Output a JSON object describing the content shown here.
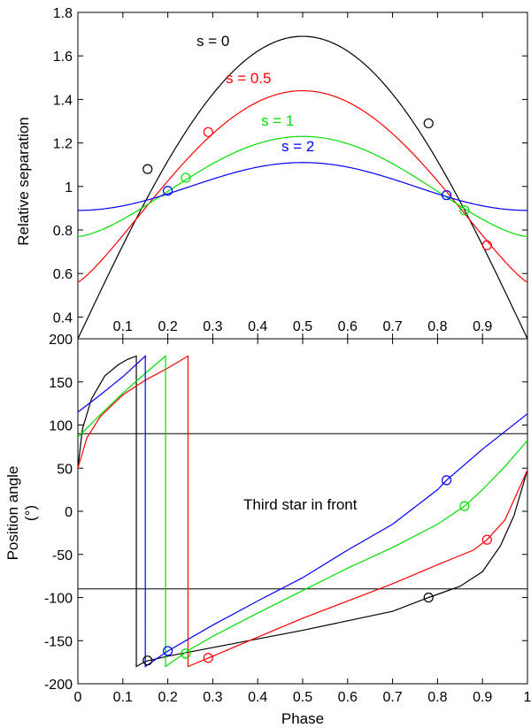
{
  "chart_data": [
    {
      "type": "line",
      "title": "",
      "xlabel": "",
      "ylabel": "Relative separation",
      "xlim": [
        0,
        1
      ],
      "ylim": [
        0.3,
        1.8
      ],
      "yticks": [
        0.4,
        0.6,
        0.8,
        1,
        1.2,
        1.4,
        1.6,
        1.8
      ],
      "ytick_labels": [
        "0.4",
        "0.6",
        "0.8",
        "1",
        "1.2",
        "1.4",
        "1.6",
        "1.8"
      ],
      "inner_xticks": [
        0.1,
        0.2,
        0.3,
        0.4,
        0.5,
        0.6,
        0.7,
        0.8,
        0.9
      ],
      "inner_xtick_labels": [
        "0.1",
        "0.2",
        "0.3",
        "0.4",
        "0.5",
        "0.6",
        "0.7",
        "0.8",
        "0.9"
      ],
      "grid": false,
      "series": [
        {
          "name": "s = 0",
          "color": "#000000",
          "peak": 1.69,
          "end_value": 0.3,
          "exponent": 1.0,
          "markers": [
            {
              "x": 0.155,
              "y": 1.08
            },
            {
              "x": 0.78,
              "y": 1.29
            }
          ]
        },
        {
          "name": "s = 0.5",
          "color": "#ff0000",
          "peak": 1.44,
          "end_value": 0.56,
          "exponent": 1.2,
          "markers": [
            {
              "x": 0.29,
              "y": 1.25
            },
            {
              "x": 0.91,
              "y": 0.73
            }
          ]
        },
        {
          "name": "s = 1",
          "color": "#00dd00",
          "peak": 1.23,
          "end_value": 0.77,
          "exponent": 1.5,
          "markers": [
            {
              "x": 0.24,
              "y": 1.04
            },
            {
              "x": 0.86,
              "y": 0.89
            }
          ]
        },
        {
          "name": "s = 2",
          "color": "#0000ff",
          "peak": 1.11,
          "end_value": 0.89,
          "exponent": 2.0,
          "markers": [
            {
              "x": 0.2,
              "y": 0.98
            },
            {
              "x": 0.82,
              "y": 0.96
            }
          ]
        }
      ]
    },
    {
      "type": "line",
      "title": "",
      "xlabel": "Phase",
      "ylabel": "Position angle (°)",
      "ylabel_lines": [
        "Position angle",
        "(°)"
      ],
      "xlim": [
        0,
        1
      ],
      "ylim": [
        -200,
        200
      ],
      "xticks": [
        0,
        0.1,
        0.2,
        0.3,
        0.4,
        0.5,
        0.6,
        0.7,
        0.8,
        0.9,
        1
      ],
      "xtick_labels": [
        "0",
        "0.1",
        "0.2",
        "0.3",
        "0.4",
        "0.5",
        "0.6",
        "0.7",
        "0.8",
        "0.9",
        "1"
      ],
      "yticks": [
        -200,
        -150,
        -100,
        -50,
        0,
        50,
        100,
        150,
        200
      ],
      "ytick_labels": [
        "-200",
        "-150",
        "-100",
        "-50",
        "0",
        "50",
        "100",
        "150",
        "200"
      ],
      "reference_lines": [
        90,
        -90
      ],
      "annotation": "Third star in front",
      "grid": false,
      "series": [
        {
          "name": "s = 0",
          "color": "#000000",
          "points": [
            [
              0,
              50
            ],
            [
              0.01,
              95
            ],
            [
              0.03,
              130
            ],
            [
              0.06,
              157
            ],
            [
              0.09,
              170
            ],
            [
              0.11,
              176
            ],
            [
              0.13,
              180
            ],
            [
              0.13,
              -180
            ],
            [
              0.15,
              -174
            ],
            [
              0.2,
              -168
            ],
            [
              0.3,
              -158
            ],
            [
              0.4,
              -148
            ],
            [
              0.5,
              -138
            ],
            [
              0.6,
              -127
            ],
            [
              0.7,
              -116
            ],
            [
              0.78,
              -100
            ],
            [
              0.85,
              -87
            ],
            [
              0.9,
              -70
            ],
            [
              0.94,
              -40
            ],
            [
              0.97,
              -5
            ],
            [
              1,
              48
            ]
          ],
          "markers": [
            {
              "x": 0.155,
              "y": -173
            },
            {
              "x": 0.78,
              "y": -100
            }
          ]
        },
        {
          "name": "s = 0.5",
          "color": "#ff0000",
          "points": [
            [
              0,
              50
            ],
            [
              0.02,
              85
            ],
            [
              0.05,
              110
            ],
            [
              0.1,
              135
            ],
            [
              0.15,
              152
            ],
            [
              0.2,
              166
            ],
            [
              0.245,
              180
            ],
            [
              0.245,
              -180
            ],
            [
              0.3,
              -168
            ],
            [
              0.4,
              -146
            ],
            [
              0.5,
              -124
            ],
            [
              0.6,
              -104
            ],
            [
              0.7,
              -84
            ],
            [
              0.8,
              -62
            ],
            [
              0.88,
              -45
            ],
            [
              0.91,
              -33
            ],
            [
              0.95,
              -10
            ],
            [
              1,
              48
            ]
          ],
          "markers": [
            {
              "x": 0.29,
              "y": -170
            },
            {
              "x": 0.91,
              "y": -33
            }
          ]
        },
        {
          "name": "s = 1",
          "color": "#00dd00",
          "points": [
            [
              0,
              86
            ],
            [
              0.05,
              112
            ],
            [
              0.1,
              137
            ],
            [
              0.15,
              160
            ],
            [
              0.195,
              180
            ],
            [
              0.195,
              -180
            ],
            [
              0.25,
              -160
            ],
            [
              0.3,
              -145
            ],
            [
              0.4,
              -118
            ],
            [
              0.5,
              -92
            ],
            [
              0.6,
              -66
            ],
            [
              0.7,
              -42
            ],
            [
              0.8,
              -15
            ],
            [
              0.86,
              6
            ],
            [
              0.9,
              25
            ],
            [
              0.95,
              52
            ],
            [
              1,
              82
            ]
          ],
          "markers": [
            {
              "x": 0.24,
              "y": -165
            },
            {
              "x": 0.86,
              "y": 6
            }
          ]
        },
        {
          "name": "s = 2",
          "color": "#0000ff",
          "points": [
            [
              0,
              115
            ],
            [
              0.05,
              135
            ],
            [
              0.1,
              156
            ],
            [
              0.15,
              180
            ],
            [
              0.15,
              -180
            ],
            [
              0.2,
              -162
            ],
            [
              0.3,
              -132
            ],
            [
              0.4,
              -104
            ],
            [
              0.5,
              -77
            ],
            [
              0.6,
              -45
            ],
            [
              0.7,
              -15
            ],
            [
              0.8,
              25
            ],
            [
              0.82,
              36
            ],
            [
              0.9,
              72
            ],
            [
              1,
              113
            ]
          ],
          "markers": [
            {
              "x": 0.2,
              "y": -162
            },
            {
              "x": 0.82,
              "y": 36
            }
          ]
        }
      ]
    }
  ]
}
